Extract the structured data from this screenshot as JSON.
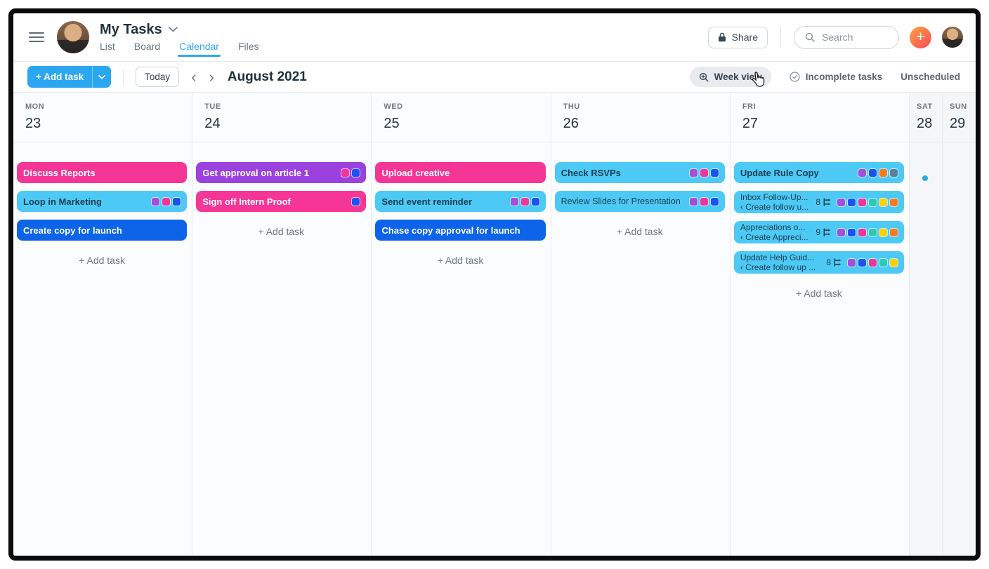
{
  "header": {
    "title": "My Tasks",
    "tabs": [
      {
        "label": "List",
        "active": false
      },
      {
        "label": "Board",
        "active": false
      },
      {
        "label": "Calendar",
        "active": true
      },
      {
        "label": "Files",
        "active": false
      }
    ],
    "share_label": "Share",
    "search_placeholder": "Search",
    "plus_label": "+"
  },
  "toolbar": {
    "add_task_label": "+ Add task",
    "today_label": "Today",
    "prev": "‹",
    "next": "›",
    "month_title": "August 2021",
    "week_view_label": "Week view",
    "incomplete_label": "Incomplete tasks",
    "unscheduled_label": "Unscheduled"
  },
  "calendar": {
    "add_task_label": "+ Add task",
    "days": [
      {
        "name": "MON",
        "date": "23",
        "weekend": false,
        "add_task": true,
        "dot": false,
        "tasks": [
          {
            "title": "Discuss Reports",
            "card": "pink",
            "tags": []
          },
          {
            "title": "Loop in Marketing",
            "card": "cyan",
            "tags": [
              "purple",
              "pink",
              "royal"
            ]
          },
          {
            "title": "Create copy for launch",
            "card": "blue",
            "tags": []
          }
        ]
      },
      {
        "name": "TUE",
        "date": "24",
        "weekend": false,
        "add_task": true,
        "dot": false,
        "tasks": [
          {
            "title": "Get approval on article 1",
            "card": "purple",
            "tags": [
              "pink",
              "royal"
            ]
          },
          {
            "title": "Sign off Intern Proof",
            "card": "pink",
            "tags": [
              "royal"
            ]
          }
        ]
      },
      {
        "name": "WED",
        "date": "25",
        "weekend": false,
        "add_task": true,
        "dot": false,
        "tasks": [
          {
            "title": "Upload creative",
            "card": "pink",
            "tags": []
          },
          {
            "title": "Send event reminder",
            "card": "cyan",
            "tags": [
              "purple",
              "pink",
              "royal"
            ]
          },
          {
            "title": "Chase copy approval for launch",
            "card": "blue",
            "tags": []
          }
        ]
      },
      {
        "name": "THU",
        "date": "26",
        "weekend": false,
        "add_task": true,
        "dot": false,
        "tasks": [
          {
            "title": "Check RSVPs",
            "card": "cyan",
            "tags": [
              "purple",
              "pink",
              "royal"
            ]
          },
          {
            "title": "Review Slides for Presentation",
            "card": "cyan",
            "wrap": true,
            "tags": [
              "purple",
              "pink",
              "royal"
            ]
          }
        ]
      },
      {
        "name": "FRI",
        "date": "27",
        "weekend": false,
        "add_task": true,
        "dot": false,
        "tasks": [
          {
            "title": "Update Rule Copy",
            "card": "cyan",
            "tags": [
              "purple",
              "royal",
              "orange",
              "slate"
            ]
          },
          {
            "title": "Inbox Follow-Up...",
            "subtitle": "‹ Create follow u...",
            "count": "8",
            "card": "cyan",
            "tags": [
              "purple",
              "royal",
              "pink",
              "teal",
              "yellow",
              "orange"
            ]
          },
          {
            "title": "Appreciations o...",
            "subtitle": "‹ Create Appreci...",
            "count": "9",
            "card": "cyan",
            "tags": [
              "purple",
              "royal",
              "pink",
              "teal",
              "yellow",
              "orange"
            ]
          },
          {
            "title": "Update Help Guid...",
            "subtitle": "‹ Create follow up ...",
            "count": "8",
            "card": "cyan",
            "tags": [
              "purple",
              "royal",
              "pink",
              "teal",
              "yellow"
            ]
          }
        ]
      },
      {
        "name": "SAT",
        "date": "28",
        "weekend": true,
        "add_task": false,
        "dot": true,
        "tasks": []
      },
      {
        "name": "SUN",
        "date": "29",
        "weekend": true,
        "add_task": false,
        "dot": false,
        "tasks": []
      }
    ]
  },
  "colors": {
    "card_pink": "#f53696",
    "card_cyan": "#4ccaf5",
    "card_blue": "#0d64e8",
    "card_purple": "#9a41de",
    "tag_purple": "#a44edb",
    "tag_pink": "#f2349b",
    "tag_royal": "#1d52f2",
    "tag_orange": "#fa7a22",
    "tag_slate": "#5f7d9c",
    "tag_teal": "#2cc9b4",
    "tag_yellow": "#ffd100",
    "accent": "#2aa7f0"
  }
}
